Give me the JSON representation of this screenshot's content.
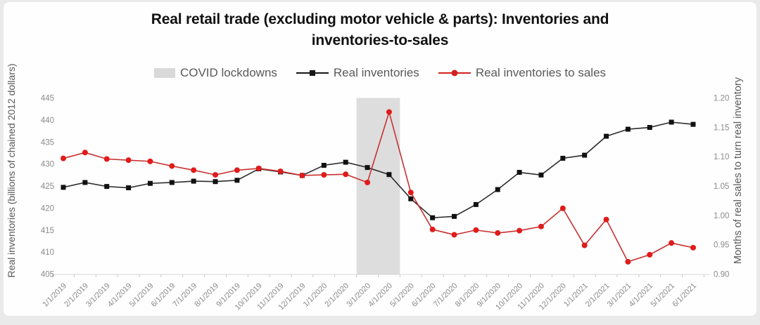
{
  "page": {
    "background": "#eaeaea",
    "card_background": "#fefefe"
  },
  "chart_data": {
    "type": "line",
    "title": "Real retail trade (excluding motor vehicle & parts): Inventories and inventories-to-sales",
    "title_lines": [
      "Real retail trade (excluding motor vehicle & parts): Inventories and",
      "inventories-to-sales"
    ],
    "title_color": "#111111",
    "legend_position": "top",
    "grid": false,
    "legend": [
      {
        "label": "COVID lockdowns",
        "swatch": "band",
        "color": "#d9d9d9"
      },
      {
        "label": "Real inventories",
        "swatch": "line-square",
        "color": "#161616"
      },
      {
        "label": "Real inventories to sales",
        "swatch": "line-circle",
        "color": "#d42020"
      }
    ],
    "categories": [
      "1/1/2019",
      "2/1/2019",
      "3/1/2019",
      "4/1/2019",
      "5/1/2019",
      "6/1/2019",
      "7/1/2019",
      "8/1/2019",
      "9/1/2019",
      "10/1/2019",
      "11/1/2019",
      "12/1/2019",
      "1/1/2020",
      "2/1/2020",
      "3/1/2020",
      "4/1/2020",
      "5/1/2020",
      "6/1/2020",
      "7/1/2020",
      "8/1/2020",
      "9/1/2020",
      "10/1/2020",
      "11/1/2020",
      "12/1/2020",
      "1/1/2021",
      "2/1/2021",
      "3/1/2021",
      "4/1/2021",
      "5/1/2021",
      "6/1/2021"
    ],
    "series": [
      {
        "name": "Real inventories",
        "axis": "left",
        "marker": "square",
        "line_color": "#2b2b2b",
        "marker_color": "#111111",
        "values": [
          424.7,
          425.8,
          424.9,
          424.6,
          425.6,
          425.8,
          426.1,
          426.0,
          426.3,
          428.9,
          428.2,
          427.4,
          429.7,
          430.4,
          429.2,
          427.6,
          422.1,
          417.8,
          418.1,
          420.8,
          424.2,
          428.1,
          427.5,
          431.3,
          432.0,
          436.3,
          437.9,
          438.3,
          439.5,
          439.0
        ]
      },
      {
        "name": "Real inventories to sales",
        "axis": "right",
        "marker": "circle",
        "line_color": "#c9302f",
        "marker_color": "#e01b1b",
        "values": [
          1.097,
          1.107,
          1.096,
          1.094,
          1.092,
          1.084,
          1.077,
          1.069,
          1.077,
          1.08,
          1.075,
          1.068,
          1.069,
          1.07,
          1.056,
          1.176,
          1.039,
          0.976,
          0.967,
          0.975,
          0.97,
          0.974,
          0.981,
          1.012,
          0.949,
          0.993,
          0.921,
          0.933,
          0.953,
          0.945
        ]
      }
    ],
    "left_axis": {
      "title": "Real inventories (billions of chained 2012 dollars)",
      "min": 405,
      "max": 445,
      "step": 5,
      "tick_labels": [
        "405",
        "410",
        "415",
        "420",
        "425",
        "430",
        "435",
        "440",
        "445"
      ]
    },
    "right_axis": {
      "title": "Months of real sales to turn real inventory",
      "min": 0.9,
      "max": 1.2,
      "step": 0.05,
      "tick_labels": [
        "0.90",
        "0.95",
        "1.00",
        "1.05",
        "1.10",
        "1.15",
        "1.20"
      ]
    },
    "covid_band": {
      "label": "COVID lockdowns",
      "start_category": "3/1/2020",
      "end_category": "4/1/2020",
      "color": "#dddddd"
    },
    "axis_text_color": "#8a8a8a",
    "axis_title_color": "#595959",
    "legend_text_color": "#595959"
  }
}
